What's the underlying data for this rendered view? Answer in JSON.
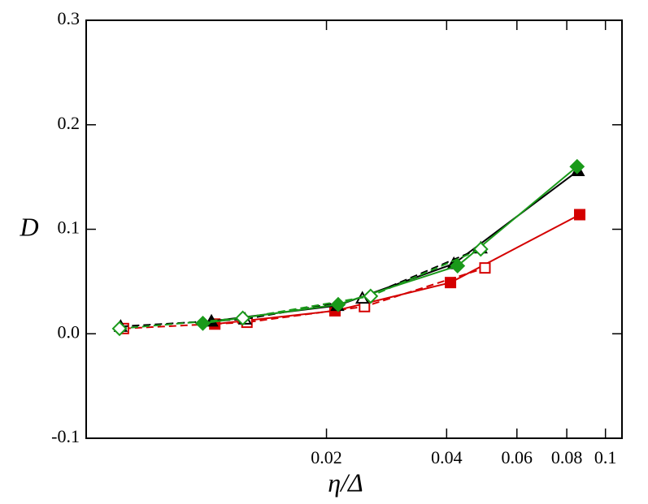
{
  "chart_data": {
    "type": "line",
    "x_label": "η/Δ",
    "y_label": "D",
    "xscale": "log",
    "xlim": [
      0.005,
      0.11
    ],
    "ylim": [
      -0.1,
      0.3
    ],
    "xticks": [
      0.02,
      0.04,
      0.06,
      0.08,
      0.1
    ],
    "yticks": [
      -0.1,
      {
        "value": 0,
        "label": "0.0"
      },
      0.1,
      0.2,
      0.3
    ],
    "grid": false,
    "series": [
      {
        "color": "#d40000",
        "marker": "square",
        "filled": true,
        "dashed": false,
        "x": [
          0.0105,
          0.021,
          0.0409,
          0.0862
        ],
        "values": [
          0.0093,
          0.022,
          0.049,
          0.114
        ]
      },
      {
        "color": "#d40000",
        "marker": "square",
        "filled": false,
        "dashed": true,
        "x": [
          0.0062,
          0.01264,
          0.0249,
          0.0499
        ],
        "values": [
          0.005,
          0.011,
          0.026,
          0.063
        ]
      },
      {
        "color": "#000000",
        "marker": "triangle",
        "filled": true,
        "dashed": false,
        "x": [
          0.0103,
          0.0213,
          0.0417,
          0.0853
        ],
        "values": [
          0.012,
          0.027,
          0.067,
          0.156
        ]
      },
      {
        "color": "#000000",
        "marker": "triangle",
        "filled": false,
        "dashed": true,
        "x": [
          0.0061,
          0.0125,
          0.0246,
          0.0487
        ],
        "values": [
          0.007,
          0.014,
          0.034,
          0.082
        ]
      },
      {
        "color": "#1a9a1a",
        "marker": "diamond",
        "filled": true,
        "dashed": false,
        "x": [
          0.0098,
          0.0214,
          0.0426,
          0.0849
        ],
        "values": [
          0.01,
          0.028,
          0.065,
          0.16
        ]
      },
      {
        "color": "#1a9a1a",
        "marker": "diamond",
        "filled": false,
        "dashed": true,
        "x": [
          0.00606,
          0.01234,
          0.0258,
          0.0487
        ],
        "values": [
          0.005,
          0.015,
          0.036,
          0.081
        ]
      }
    ]
  }
}
